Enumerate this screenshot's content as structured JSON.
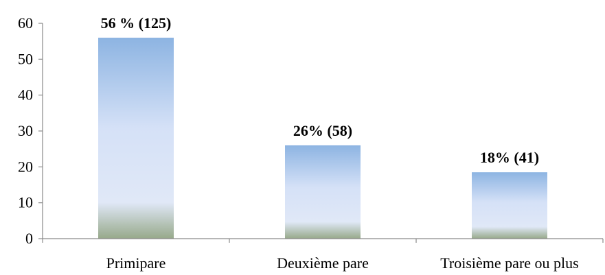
{
  "chart_data": {
    "type": "bar",
    "categories": [
      "Primipare",
      "Deuxième pare",
      "Troisième pare ou plus"
    ],
    "values": [
      56,
      26,
      18.5
    ],
    "data_labels": [
      "56 % (125)",
      "26% (58)",
      "18% (41)"
    ],
    "title": "",
    "xlabel": "",
    "ylabel": "",
    "ylim": [
      0,
      60
    ],
    "yticks": [
      "0",
      "10",
      "20",
      "30",
      "40",
      "50",
      "60"
    ],
    "grid": false,
    "legend": "none",
    "bar_gradient": [
      "#8db4e2",
      "#dbe5f8",
      "#97a98a"
    ]
  }
}
